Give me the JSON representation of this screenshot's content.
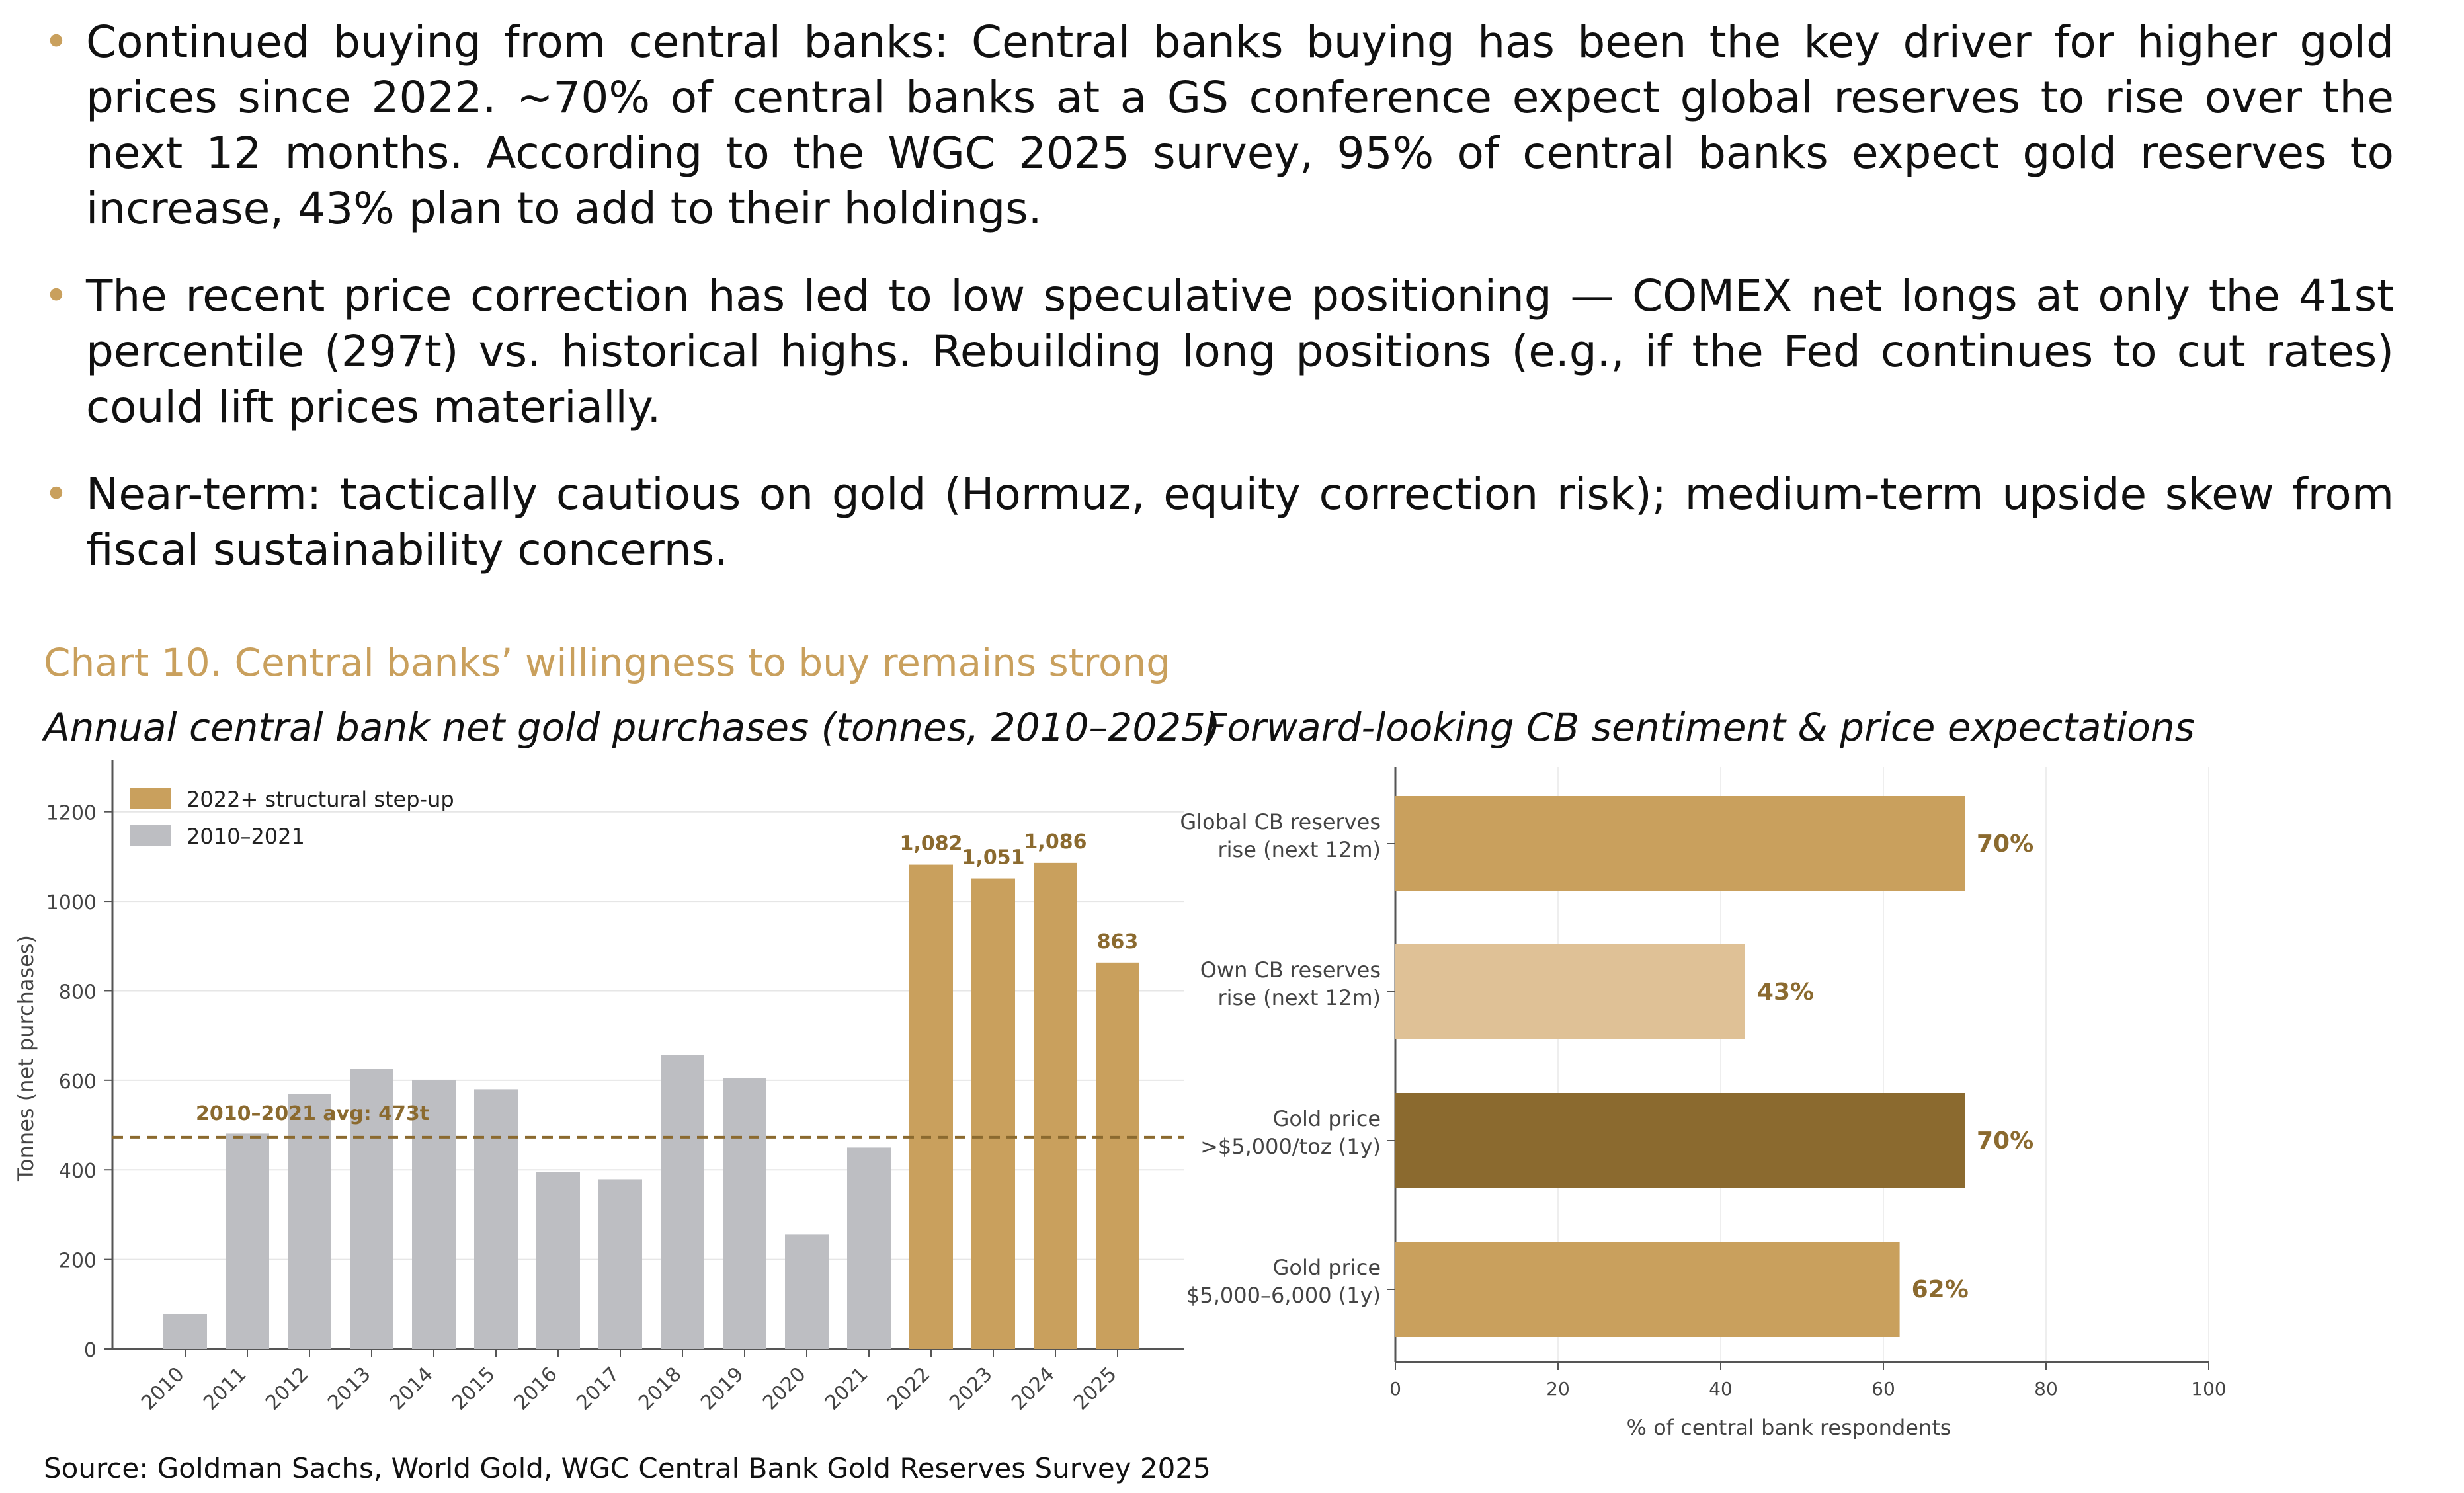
{
  "bullets": [
    "Continued buying from central banks: Central banks buying has been the key driver for higher gold prices since 2022. ~70% of central banks at a GS conference expect global reserves to rise over the next 12 months. According to the WGC 2025 survey, 95% of central banks expect gold reserves to increase, 43% plan to add to their holdings.",
    "The recent price correction has led to low speculative positioning — COMEX net longs at only the 41st percentile (297t) vs. historical highs. Rebuilding long positions (e.g., if the Fed continues to cut rates) could lift prices materially.",
    "Near-term: tactically cautious on gold (Hormuz, equity correction risk); medium-term upside skew from fiscal sustainability concerns."
  ],
  "chart_title": "Chart 10. Central banks’ willingness to buy remains strong",
  "source": "Source: Goldman Sachs, World Gold, WGC Central Bank Gold Reserves Survey 2025",
  "chart_data": [
    {
      "type": "bar",
      "title": "Annual central bank net gold purchases (tonnes, 2010–2025)",
      "ylabel": "Tonnes (net purchases)",
      "ylim": [
        0,
        1300
      ],
      "yticks": [
        0,
        200,
        400,
        600,
        800,
        1000,
        1200
      ],
      "grid": true,
      "legend_position": "top-left",
      "categories": [
        "2010",
        "2011",
        "2012",
        "2013",
        "2014",
        "2015",
        "2016",
        "2017",
        "2018",
        "2019",
        "2020",
        "2021",
        "2022",
        "2023",
        "2024",
        "2025"
      ],
      "series": [
        {
          "name": "2022+ structural step-up",
          "color": "#c9a05d",
          "indices": [
            12,
            13,
            14,
            15
          ]
        },
        {
          "name": "2010–2021",
          "color": "#bdbec2",
          "indices": [
            0,
            1,
            2,
            3,
            4,
            5,
            6,
            7,
            8,
            9,
            10,
            11
          ]
        }
      ],
      "values": [
        77,
        481,
        569,
        625,
        601,
        580,
        395,
        379,
        656,
        605,
        255,
        450,
        1082,
        1051,
        1086,
        863
      ],
      "data_labels": {
        "12": "1,082",
        "13": "1,051",
        "14": "1,086",
        "15": "863"
      },
      "reference_line": {
        "value": 473,
        "label": "2010–2021 avg: 473t",
        "color": "#8b6a2f"
      }
    },
    {
      "type": "bar",
      "orientation": "horizontal",
      "title": "Forward-looking CB sentiment & price expectations",
      "xlabel": "% of central bank respondents",
      "xlim": [
        0,
        100
      ],
      "xticks": [
        0,
        20,
        40,
        60,
        80,
        100
      ],
      "grid": true,
      "categories": [
        [
          "Global CB reserves",
          "rise (next 12m)"
        ],
        [
          "Own CB reserves",
          "rise (next 12m)"
        ],
        [
          "Gold price",
          ">$5,000/toz (1y)"
        ],
        [
          "Gold price",
          "$5,000–6,000 (1y)"
        ]
      ],
      "values": [
        70,
        43,
        70,
        62
      ],
      "value_labels": [
        "70%",
        "43%",
        "70%",
        "62%"
      ],
      "colors": [
        "#c9a05d",
        "#dfc196",
        "#8b6a2f",
        "#c9a05d"
      ]
    }
  ]
}
